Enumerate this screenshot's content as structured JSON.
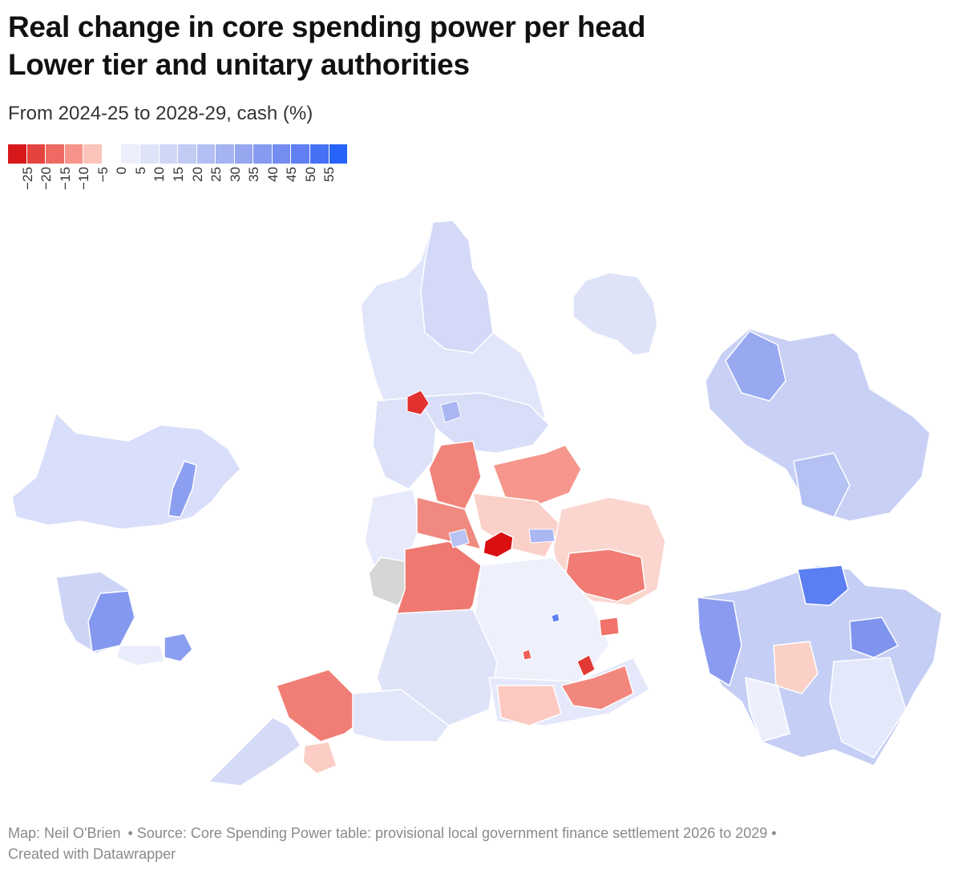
{
  "title_line1": "Real change in core spending power per head",
  "title_line2": "Lower tier and unitary authorities",
  "subtitle": "From 2024-25 to 2028-29, cash (%)",
  "legend": {
    "colors": [
      "#d7191c",
      "#e4443f",
      "#ee6a63",
      "#f69489",
      "#fbc4bb",
      "#ffffff",
      "#eceefb",
      "#dfe3f8",
      "#d0d7f6",
      "#c2cbf4",
      "#b3bff2",
      "#a5b3f1",
      "#96a7f0",
      "#869aef",
      "#748df0",
      "#5f7ff2",
      "#4671f5",
      "#2663f9"
    ],
    "ticks": [
      "-25",
      "-20",
      "-15",
      "-10",
      "-5",
      "0",
      "5",
      "10",
      "15",
      "20",
      "25",
      "30",
      "35",
      "40",
      "45",
      "50",
      "55"
    ]
  },
  "footer": {
    "map_credit": "Map: Neil O'Brien",
    "source": "• Source: Core Spending Power table: provisional local government finance settlement 2026 to 2029  •",
    "created": "Created with Datawrapper"
  }
}
